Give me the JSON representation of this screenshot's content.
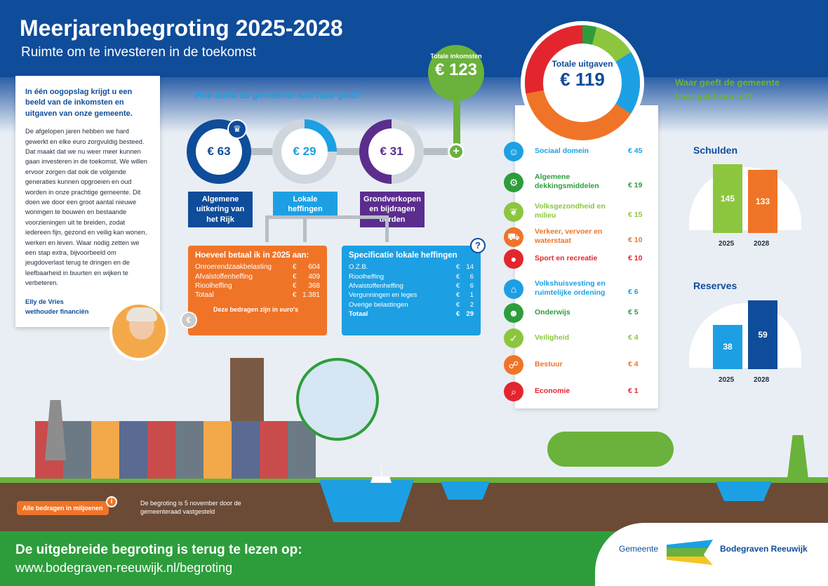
{
  "title": "Meerjarenbegroting 2025-2028",
  "subtitle": "Ruimte om te investeren in de toekomst",
  "intro": {
    "headline": "In één oogopslag krijgt u een beeld van de inkomsten en uitgaven van onze gemeente.",
    "body": "De afgelopen jaren hebben we hard gewerkt en elke euro zorgvuldig besteed. Dat maakt dat we nu weer meer kunnen gaan investeren in de toekomst. We willen ervoor zorgen dat ook de volgende generaties kunnen opgroeien en oud worden in onze prachtige gemeente. Dit doen we door een groot aantal nieuwe woningen te bouwen en bestaande voorzieningen uit te breiden, zodat iedereen fijn, gezond en veilig kan wonen, werken en leven. Waar nodig zetten we een stap extra, bijvoorbeeld om jeugdoverlast terug te dringen en de leefbaarheid in buurten en wijken te verbeteren.",
    "name": "Elly de Vries",
    "role": "wethouder financiën"
  },
  "income_question": "Hoe komt de gemeente aan haar geld?",
  "totale_inkomsten": {
    "label": "Totale inkomsten",
    "value": "€ 123"
  },
  "income": [
    {
      "value": "€ 63",
      "label": "Algemene uitkering van het Rijk",
      "color": "#0f4c9a"
    },
    {
      "value": "€ 29",
      "label": "Lokale heffingen",
      "color": "#1ca0e3"
    },
    {
      "value": "€ 31",
      "label": "Grondverkopen en bijdragen derden",
      "color": "#5b2d8e"
    }
  ],
  "betaal": {
    "title": "Hoeveel betaal ik in 2025 aan:",
    "rows": [
      [
        "Onroerendzaakbelasting",
        "€",
        "604"
      ],
      [
        "Afvalstoffenheffing",
        "€",
        "409"
      ],
      [
        "Rioolheffing",
        "€",
        "368"
      ],
      [
        "Totaal",
        "€",
        "1.381"
      ]
    ],
    "note": "Deze bedragen zijn in euro's"
  },
  "spec": {
    "title": "Specificatie lokale heffingen",
    "rows": [
      [
        "O.Z.B.",
        "€",
        "14"
      ],
      [
        "Rioolheffing",
        "€",
        "6"
      ],
      [
        "Afvalstoffenheffing",
        "€",
        "6"
      ],
      [
        "Vergunningen en leges",
        "€",
        "1"
      ],
      [
        "Overige belastingen",
        "€",
        "2"
      ],
      [
        "Totaal",
        "€",
        "29"
      ]
    ]
  },
  "totale_uitgaven": {
    "label": "Totale uitgaven",
    "value": "€ 119"
  },
  "spend_question": "Waar geeft de gemeente haar geld aan uit?",
  "spend": [
    {
      "label": "Sociaal domein",
      "value": "€ 45",
      "color": "#1ca0e3"
    },
    {
      "label": "Algemene dekkingsmiddelen",
      "value": "€ 19",
      "color": "#2d9d3c"
    },
    {
      "label": "Volksgezondheid en milieu",
      "value": "€ 15",
      "color": "#8cc63f"
    },
    {
      "label": "Verkeer, vervoer en waterstaat",
      "value": "€ 10",
      "color": "#f07427"
    },
    {
      "label": "Sport en recreatie",
      "value": "€ 10",
      "color": "#e3262e"
    },
    {
      "label": "Volkshuisvesting en ruimtelijke ordening",
      "value": "€ 6",
      "color": "#1ca0e3"
    },
    {
      "label": "Onderwijs",
      "value": "€ 5",
      "color": "#2d9d3c"
    },
    {
      "label": "Veiligheid",
      "value": "€ 4",
      "color": "#8cc63f"
    },
    {
      "label": "Bestuur",
      "value": "€ 4",
      "color": "#f07427"
    },
    {
      "label": "Economie",
      "value": "€ 1",
      "color": "#e3262e"
    }
  ],
  "schulden": {
    "title": "Schulden",
    "years": [
      "2025",
      "2028"
    ],
    "values": [
      145,
      133
    ]
  },
  "reserves": {
    "title": "Reserves",
    "years": [
      "2025",
      "2028"
    ],
    "values": [
      38,
      59
    ]
  },
  "footnote_badge": "Alle bedragen in miljoenen",
  "footnote": "De begroting is 5 november door de gemeenteraad vastgesteld",
  "footer": {
    "line1": "De uitgebreide begroting is terug te lezen op:",
    "line2": "www.bodegraven-reeuwijk.nl/begroting"
  },
  "logo": {
    "pre": "Gemeente",
    "name": "Bodegraven Reeuwijk"
  }
}
